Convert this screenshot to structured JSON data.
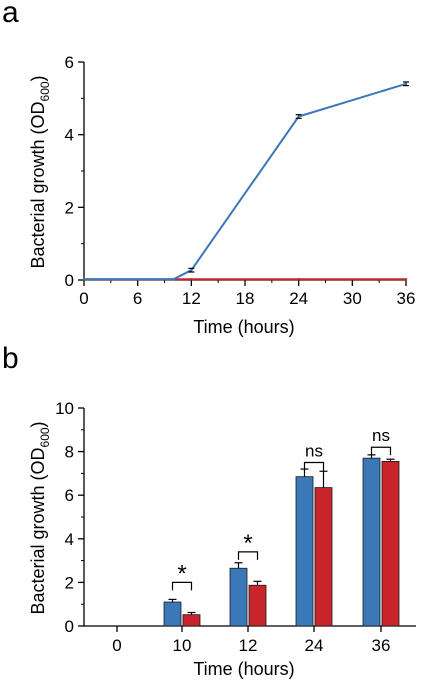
{
  "chart_data": [
    {
      "panel": "a",
      "type": "line",
      "xlabel": "Time (hours)",
      "ylabel_main": "Bacterial growth (OD",
      "ylabel_sub": "600",
      "ylabel_tail": ")",
      "xlim": [
        0,
        36
      ],
      "ylim": [
        0,
        6
      ],
      "xticks": [
        0,
        6,
        12,
        18,
        24,
        30,
        36
      ],
      "yticks": [
        0,
        2,
        4,
        6
      ],
      "grid": false,
      "series": [
        {
          "color": "#3a78b8",
          "x": [
            0,
            10,
            12,
            24,
            36
          ],
          "y": [
            0.02,
            0.02,
            0.27,
            4.5,
            5.4
          ],
          "err": [
            0,
            0,
            0.05,
            0.05,
            0.05
          ]
        },
        {
          "color": "#c8242b",
          "x": [
            0,
            10,
            12,
            24,
            36
          ],
          "y": [
            0.02,
            0.02,
            0.02,
            0.02,
            0.02
          ],
          "err": [
            0,
            0,
            0,
            0,
            0
          ]
        }
      ]
    },
    {
      "panel": "b",
      "type": "bar",
      "xlabel": "Time (hours)",
      "ylabel_main": "Bacterial growth (OD",
      "ylabel_sub": "600",
      "ylabel_tail": ")",
      "ylim": [
        0,
        10
      ],
      "yticks": [
        0,
        2,
        4,
        6,
        8,
        10
      ],
      "grid": false,
      "categories": [
        "0",
        "10",
        "12",
        "24",
        "36"
      ],
      "series": [
        {
          "color": "#3a78b8",
          "values": [
            0,
            1.1,
            2.65,
            6.85,
            7.7
          ],
          "err": [
            0,
            0.12,
            0.25,
            0.35,
            0.15
          ]
        },
        {
          "color": "#c8242b",
          "values": [
            0,
            0.52,
            1.87,
            6.35,
            7.55
          ],
          "err": [
            0,
            0.1,
            0.18,
            0.75,
            0.1
          ]
        }
      ],
      "annotations": [
        {
          "category": "10",
          "text": "*",
          "level": 2.0
        },
        {
          "category": "12",
          "text": "*",
          "level": 3.4
        },
        {
          "category": "24",
          "text": "ns",
          "level": 7.5
        },
        {
          "category": "36",
          "text": "ns",
          "level": 8.2
        }
      ]
    }
  ],
  "panels": {
    "a": "a",
    "b": "b"
  }
}
